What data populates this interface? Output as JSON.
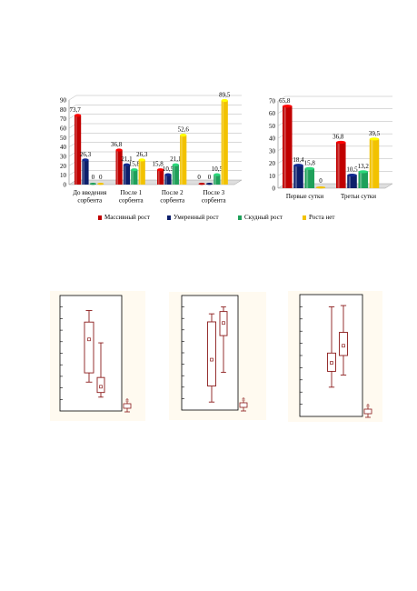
{
  "chart_data": [
    {
      "type": "bar",
      "categories": [
        "До введения сорбента",
        "После 1 сорбента",
        "После 2 сорбента",
        "После 3 сорбента"
      ],
      "category_lines": [
        [
          "До введения",
          "сорбента"
        ],
        [
          "После 1",
          "сорбента"
        ],
        [
          "После 2",
          "сорбента"
        ],
        [
          "После 3",
          "сорбента"
        ]
      ],
      "series": [
        {
          "name": "Массивный рост",
          "values": [
            73.7,
            36.8,
            15.8,
            0
          ]
        },
        {
          "name": "Умеренный рост",
          "values": [
            26.3,
            21.1,
            10.5,
            0
          ]
        },
        {
          "name": "Скудный рост",
          "values": [
            0,
            15.8,
            21.1,
            10.5
          ]
        },
        {
          "name": "Роста нет",
          "values": [
            0,
            26.3,
            52.6,
            89.5
          ]
        }
      ],
      "value_labels": [
        [
          "73,7",
          "36,8",
          "15,8",
          "0"
        ],
        [
          "26,3",
          "21,1",
          "10,5",
          "0"
        ],
        [
          "0",
          "15,8",
          "21,1",
          "10,5"
        ],
        [
          "0",
          "26,3",
          "52,6",
          "89,5"
        ]
      ],
      "yticks": [
        "0",
        "10",
        "20",
        "30",
        "40",
        "50",
        "60",
        "70",
        "80",
        "90"
      ],
      "ylim": [
        0,
        90
      ],
      "grid": true
    },
    {
      "type": "bar",
      "categories": [
        "Первые сутки",
        "Третьи сутки"
      ],
      "category_lines": [
        [
          "Первые сутки"
        ],
        [
          "Третьи сутки"
        ]
      ],
      "series": [
        {
          "name": "Массивный рост",
          "values": [
            65.8,
            36.8
          ]
        },
        {
          "name": "Умеренный рост",
          "values": [
            18.4,
            10.5
          ]
        },
        {
          "name": "Скудный рост",
          "values": [
            15.8,
            13.2
          ]
        },
        {
          "name": "Роста нет",
          "values": [
            0,
            39.5
          ]
        }
      ],
      "value_labels": [
        [
          "65,8",
          "36,8"
        ],
        [
          "18,4",
          "10,5"
        ],
        [
          "15,8",
          "13,2"
        ],
        [
          "0",
          "39,5"
        ]
      ],
      "yticks": [
        "0",
        "10",
        "20",
        "30",
        "40",
        "50",
        "60",
        "70"
      ],
      "ylim": [
        0,
        70
      ],
      "grid": true
    }
  ],
  "legend": {
    "placement": "bottom",
    "items": [
      {
        "label": "Массивный рост",
        "color": "#c00000"
      },
      {
        "label": "Умеренный рост",
        "color": "#0d1f6b"
      },
      {
        "label": "Скудный рост",
        "color": "#1fa05a"
      },
      {
        "label": "Роста нет",
        "color": "#f2c200"
      }
    ]
  },
  "boxplots": {
    "color": "#8b1a1a",
    "background": "#fffaf0",
    "legend_symbol": "□",
    "panels": [
      {
        "boxes": [
          {
            "min": 0.25,
            "q1": 0.33,
            "median": 0.62,
            "q3": 0.77,
            "max": 0.87
          },
          {
            "min": 0.12,
            "q1": 0.16,
            "median": 0.21,
            "q3": 0.29,
            "max": 0.59
          }
        ]
      },
      {
        "boxes": [
          {
            "min": 0.07,
            "q1": 0.21,
            "median": 0.44,
            "q3": 0.77,
            "max": 0.84
          },
          {
            "min": 0.33,
            "q1": 0.65,
            "median": 0.76,
            "q3": 0.86,
            "max": 0.9
          }
        ]
      },
      {
        "boxes": [
          {
            "min": 0.24,
            "q1": 0.37,
            "median": 0.44,
            "q3": 0.52,
            "max": 0.9
          },
          {
            "min": 0.34,
            "q1": 0.5,
            "median": 0.58,
            "q3": 0.69,
            "max": 0.91
          }
        ]
      }
    ]
  }
}
